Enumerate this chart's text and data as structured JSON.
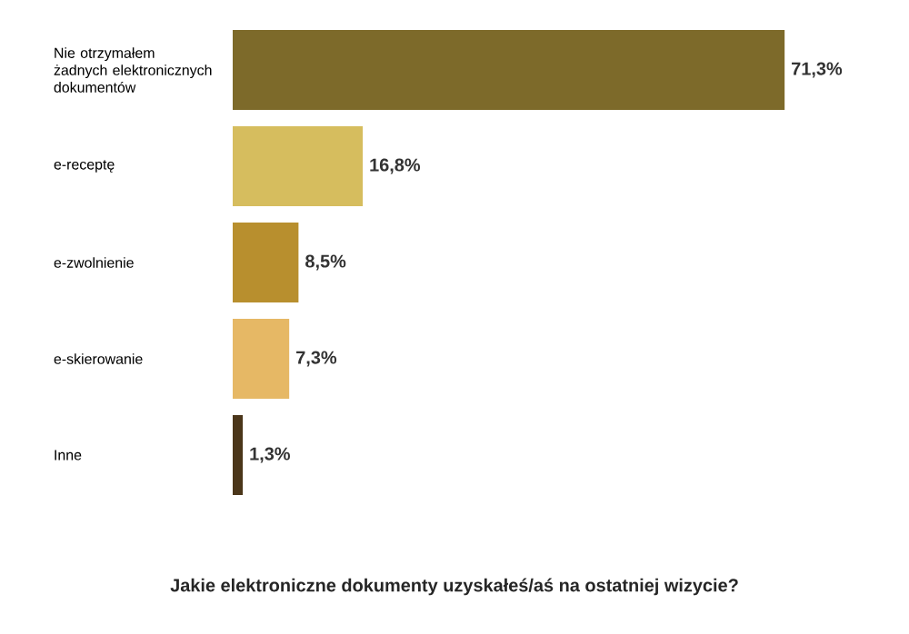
{
  "chart_data": {
    "type": "bar",
    "orientation": "horizontal",
    "title": "Jakie elektroniczne dokumenty uzyskałeś/aś na ostatniej wizycie?",
    "categories": [
      "Nie otrzymałem żadnych elektronicznych dokumentów",
      "e-receptę",
      "e-zwolnienie",
      "e-skierowanie",
      "Inne"
    ],
    "values": [
      71.3,
      16.8,
      8.5,
      7.3,
      1.3
    ],
    "value_labels": [
      "71,3%",
      "16,8%",
      "8,5%",
      "7,3%",
      "1,3%"
    ],
    "colors": [
      "#7d6a2a",
      "#d6bd5e",
      "#b88f2e",
      "#e6b865",
      "#4b361a"
    ],
    "tick_labels": "y"
  }
}
